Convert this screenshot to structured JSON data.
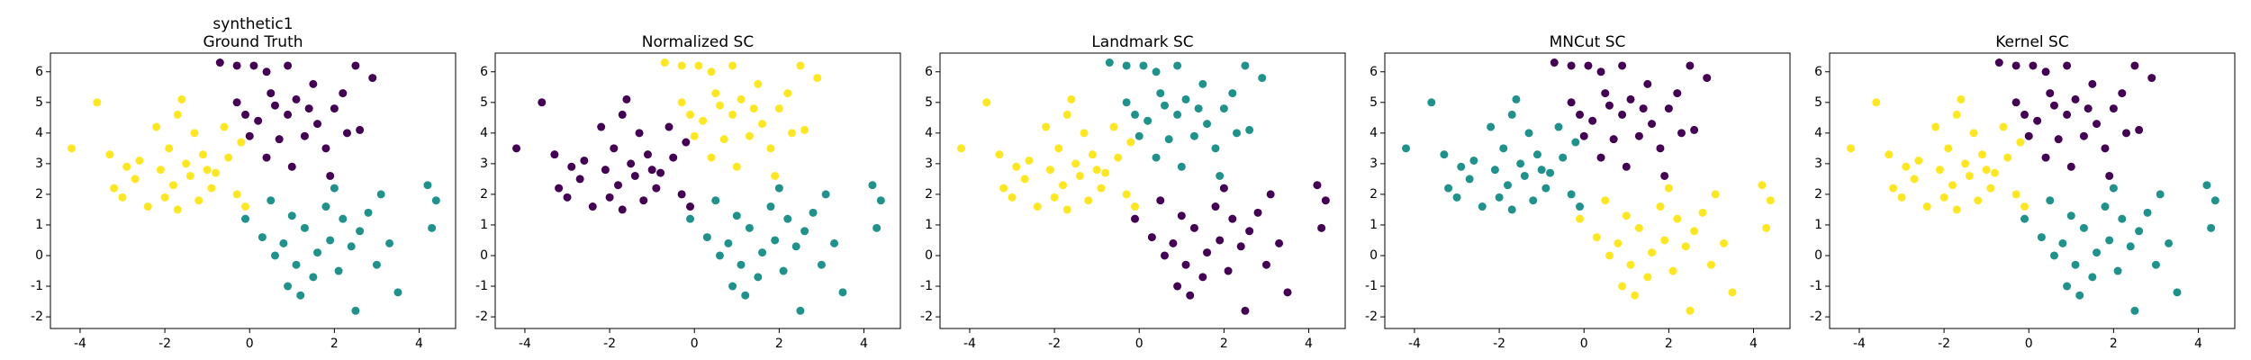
{
  "chart_data": [
    {
      "type": "scatter",
      "title": "synthetic1",
      "subtitle": "Ground Truth",
      "xlim": [
        -4.7,
        4.86
      ],
      "ylim": [
        -2.38,
        6.61
      ],
      "xticks": [
        -4,
        -2,
        0,
        2,
        4
      ],
      "yticks": [
        -2,
        -1,
        0,
        1,
        2,
        3,
        4,
        5,
        6
      ],
      "series": [
        {
          "color": "#fde725",
          "x": [
            -4.2,
            -3.6,
            -3.3,
            -3.2,
            -3.0,
            -2.7,
            -2.6,
            -2.4,
            -2.2,
            -2.1,
            -2.0,
            -1.9,
            -1.8,
            -1.7,
            -1.6,
            -1.5,
            -1.4,
            -1.3,
            -1.2,
            -1.1,
            -1.0,
            -0.8,
            -0.6,
            -0.5,
            -0.3,
            -0.2,
            -0.1,
            -1.7,
            -2.9,
            -0.9
          ],
          "y": [
            3.5,
            5.0,
            3.3,
            2.2,
            1.9,
            2.5,
            3.1,
            1.6,
            4.2,
            2.8,
            1.9,
            3.5,
            2.3,
            1.5,
            5.1,
            3.0,
            2.6,
            4.0,
            1.8,
            3.3,
            2.8,
            2.7,
            4.2,
            3.2,
            2.0,
            3.7,
            1.6,
            4.6,
            2.9,
            2.2
          ]
        },
        {
          "color": "#440154",
          "x": [
            -0.7,
            -0.3,
            0.1,
            0.4,
            0.9,
            1.5,
            2.2,
            2.5,
            2.9,
            -0.3,
            0.2,
            0.5,
            0.7,
            0.9,
            1.1,
            1.3,
            1.6,
            1.8,
            2.0,
            2.3,
            2.6,
            0.0,
            0.4,
            1.0,
            1.9,
            0.6,
            1.4,
            -0.1
          ],
          "y": [
            6.3,
            6.2,
            6.2,
            6.0,
            6.2,
            5.6,
            5.3,
            6.2,
            5.8,
            5.0,
            4.4,
            5.3,
            3.8,
            4.6,
            5.1,
            3.9,
            4.3,
            3.5,
            4.8,
            4.0,
            4.1,
            3.9,
            3.2,
            2.9,
            2.6,
            4.9,
            4.8,
            4.6
          ]
        },
        {
          "color": "#21918c",
          "x": [
            -0.1,
            0.3,
            0.5,
            0.8,
            1.0,
            1.1,
            1.3,
            1.5,
            1.6,
            1.8,
            1.9,
            2.1,
            2.2,
            2.4,
            2.5,
            2.6,
            2.8,
            3.0,
            3.1,
            3.3,
            3.5,
            4.2,
            4.4,
            4.3,
            0.9,
            1.2,
            2.0,
            0.6
          ],
          "y": [
            1.2,
            0.6,
            1.8,
            0.4,
            1.3,
            -0.3,
            0.9,
            -0.7,
            0.1,
            1.6,
            0.5,
            -0.5,
            1.2,
            0.3,
            -1.8,
            0.8,
            1.4,
            -0.3,
            2.0,
            0.4,
            -1.2,
            2.3,
            1.8,
            0.9,
            -1.0,
            -1.3,
            2.2,
            0.0
          ]
        }
      ]
    },
    {
      "type": "scatter",
      "title": "Normalized SC",
      "xlim": [
        -4.7,
        4.86
      ],
      "ylim": [
        -2.38,
        6.61
      ],
      "xticks": [
        -4,
        -2,
        0,
        2,
        4
      ],
      "yticks": [
        -2,
        -1,
        0,
        1,
        2,
        3,
        4,
        5,
        6
      ],
      "series": [
        {
          "color": "#440154",
          "x": [
            -4.2,
            -3.6,
            -3.3,
            -3.2,
            -3.0,
            -2.7,
            -2.6,
            -2.4,
            -2.2,
            -2.1,
            -2.0,
            -1.9,
            -1.8,
            -1.7,
            -1.6,
            -1.5,
            -1.4,
            -1.3,
            -1.2,
            -1.1,
            -1.0,
            -0.8,
            -0.6,
            -0.5,
            -0.3,
            -0.2,
            -0.1,
            -1.7,
            -2.9,
            -0.9
          ],
          "y": [
            3.5,
            5.0,
            3.3,
            2.2,
            1.9,
            2.5,
            3.1,
            1.6,
            4.2,
            2.8,
            1.9,
            3.5,
            2.3,
            1.5,
            5.1,
            3.0,
            2.6,
            4.0,
            1.8,
            3.3,
            2.8,
            2.7,
            4.2,
            3.2,
            2.0,
            3.7,
            1.6,
            4.6,
            2.9,
            2.2
          ]
        },
        {
          "color": "#fde725",
          "x": [
            -0.7,
            -0.3,
            0.1,
            0.4,
            0.9,
            1.5,
            2.2,
            2.5,
            2.9,
            -0.3,
            0.2,
            0.5,
            0.7,
            0.9,
            1.1,
            1.3,
            1.6,
            1.8,
            2.0,
            2.3,
            2.6,
            0.0,
            0.4,
            1.0,
            1.9,
            0.6,
            1.4,
            -0.1
          ],
          "y": [
            6.3,
            6.2,
            6.2,
            6.0,
            6.2,
            5.6,
            5.3,
            6.2,
            5.8,
            5.0,
            4.4,
            5.3,
            3.8,
            4.6,
            5.1,
            3.9,
            4.3,
            3.5,
            4.8,
            4.0,
            4.1,
            3.9,
            3.2,
            2.9,
            2.6,
            4.9,
            4.8,
            4.6
          ]
        },
        {
          "color": "#21918c",
          "x": [
            -0.1,
            0.3,
            0.5,
            0.8,
            1.0,
            1.1,
            1.3,
            1.5,
            1.6,
            1.8,
            1.9,
            2.1,
            2.2,
            2.4,
            2.5,
            2.6,
            2.8,
            3.0,
            3.1,
            3.3,
            3.5,
            4.2,
            4.4,
            4.3,
            0.9,
            1.2,
            2.0,
            0.6
          ],
          "y": [
            1.2,
            0.6,
            1.8,
            0.4,
            1.3,
            -0.3,
            0.9,
            -0.7,
            0.1,
            1.6,
            0.5,
            -0.5,
            1.2,
            0.3,
            -1.8,
            0.8,
            1.4,
            -0.3,
            2.0,
            0.4,
            -1.2,
            2.3,
            1.8,
            0.9,
            -1.0,
            -1.3,
            2.2,
            0.0
          ]
        }
      ]
    },
    {
      "type": "scatter",
      "title": "Landmark SC",
      "xlim": [
        -4.7,
        4.86
      ],
      "ylim": [
        -2.38,
        6.61
      ],
      "xticks": [
        -4,
        -2,
        0,
        2,
        4
      ],
      "yticks": [
        -2,
        -1,
        0,
        1,
        2,
        3,
        4,
        5,
        6
      ],
      "series": [
        {
          "color": "#fde725",
          "x": [
            -4.2,
            -3.6,
            -3.3,
            -3.2,
            -3.0,
            -2.7,
            -2.6,
            -2.4,
            -2.2,
            -2.1,
            -2.0,
            -1.9,
            -1.8,
            -1.7,
            -1.6,
            -1.5,
            -1.4,
            -1.3,
            -1.2,
            -1.1,
            -1.0,
            -0.8,
            -0.6,
            -0.5,
            -0.3,
            -0.2,
            -0.1,
            -1.7,
            -2.9,
            -0.9
          ],
          "y": [
            3.5,
            5.0,
            3.3,
            2.2,
            1.9,
            2.5,
            3.1,
            1.6,
            4.2,
            2.8,
            1.9,
            3.5,
            2.3,
            1.5,
            5.1,
            3.0,
            2.6,
            4.0,
            1.8,
            3.3,
            2.8,
            2.7,
            4.2,
            3.2,
            2.0,
            3.7,
            1.6,
            4.6,
            2.9,
            2.2
          ]
        },
        {
          "color": "#21918c",
          "x": [
            -0.7,
            -0.3,
            0.1,
            0.4,
            0.9,
            1.5,
            2.2,
            2.5,
            2.9,
            -0.3,
            0.2,
            0.5,
            0.7,
            0.9,
            1.1,
            1.3,
            1.6,
            1.8,
            2.0,
            2.3,
            2.6,
            0.0,
            0.4,
            1.0,
            1.9,
            0.6,
            1.4,
            -0.1
          ],
          "y": [
            6.3,
            6.2,
            6.2,
            6.0,
            6.2,
            5.6,
            5.3,
            6.2,
            5.8,
            5.0,
            4.4,
            5.3,
            3.8,
            4.6,
            5.1,
            3.9,
            4.3,
            3.5,
            4.8,
            4.0,
            4.1,
            3.9,
            3.2,
            2.9,
            2.6,
            4.9,
            4.8,
            4.6
          ]
        },
        {
          "color": "#440154",
          "x": [
            -0.1,
            0.3,
            0.5,
            0.8,
            1.0,
            1.1,
            1.3,
            1.5,
            1.6,
            1.8,
            1.9,
            2.1,
            2.2,
            2.4,
            2.5,
            2.6,
            2.8,
            3.0,
            3.1,
            3.3,
            3.5,
            4.2,
            4.4,
            4.3,
            0.9,
            1.2,
            2.0,
            0.6
          ],
          "y": [
            1.2,
            0.6,
            1.8,
            0.4,
            1.3,
            -0.3,
            0.9,
            -0.7,
            0.1,
            1.6,
            0.5,
            -0.5,
            1.2,
            0.3,
            -1.8,
            0.8,
            1.4,
            -0.3,
            2.0,
            0.4,
            -1.2,
            2.3,
            1.8,
            0.9,
            -1.0,
            -1.3,
            2.2,
            0.0
          ]
        }
      ]
    },
    {
      "type": "scatter",
      "title": "MNCut SC",
      "xlim": [
        -4.7,
        4.86
      ],
      "ylim": [
        -2.38,
        6.61
      ],
      "xticks": [
        -4,
        -2,
        0,
        2,
        4
      ],
      "yticks": [
        -2,
        -1,
        0,
        1,
        2,
        3,
        4,
        5,
        6
      ],
      "series": [
        {
          "color": "#21918c",
          "x": [
            -4.2,
            -3.6,
            -3.3,
            -3.2,
            -3.0,
            -2.7,
            -2.6,
            -2.4,
            -2.2,
            -2.1,
            -2.0,
            -1.9,
            -1.8,
            -1.7,
            -1.6,
            -1.5,
            -1.4,
            -1.3,
            -1.2,
            -1.1,
            -1.0,
            -0.8,
            -0.6,
            -0.5,
            -0.3,
            -0.2,
            -0.1,
            -1.7,
            -2.9,
            -0.9
          ],
          "y": [
            3.5,
            5.0,
            3.3,
            2.2,
            1.9,
            2.5,
            3.1,
            1.6,
            4.2,
            2.8,
            1.9,
            3.5,
            2.3,
            1.5,
            5.1,
            3.0,
            2.6,
            4.0,
            1.8,
            3.3,
            2.8,
            2.7,
            4.2,
            3.2,
            2.0,
            3.7,
            1.6,
            4.6,
            2.9,
            2.2
          ]
        },
        {
          "color": "#440154",
          "x": [
            -0.7,
            -0.3,
            0.1,
            0.4,
            0.9,
            1.5,
            2.2,
            2.5,
            2.9,
            -0.3,
            0.2,
            0.5,
            0.7,
            0.9,
            1.1,
            1.3,
            1.6,
            1.8,
            2.0,
            2.3,
            2.6,
            0.0,
            0.4,
            1.0,
            1.9,
            0.6,
            1.4,
            -0.1
          ],
          "y": [
            6.3,
            6.2,
            6.2,
            6.0,
            6.2,
            5.6,
            5.3,
            6.2,
            5.8,
            5.0,
            4.4,
            5.3,
            3.8,
            4.6,
            5.1,
            3.9,
            4.3,
            3.5,
            4.8,
            4.0,
            4.1,
            3.9,
            3.2,
            2.9,
            2.6,
            4.9,
            4.8,
            4.6
          ]
        },
        {
          "color": "#fde725",
          "x": [
            -0.1,
            0.3,
            0.5,
            0.8,
            1.0,
            1.1,
            1.3,
            1.5,
            1.6,
            1.8,
            1.9,
            2.1,
            2.2,
            2.4,
            2.5,
            2.6,
            2.8,
            3.0,
            3.1,
            3.3,
            3.5,
            4.2,
            4.4,
            4.3,
            0.9,
            1.2,
            2.0,
            0.6
          ],
          "y": [
            1.2,
            0.6,
            1.8,
            0.4,
            1.3,
            -0.3,
            0.9,
            -0.7,
            0.1,
            1.6,
            0.5,
            -0.5,
            1.2,
            0.3,
            -1.8,
            0.8,
            1.4,
            -0.3,
            2.0,
            0.4,
            -1.2,
            2.3,
            1.8,
            0.9,
            -1.0,
            -1.3,
            2.2,
            0.0
          ]
        }
      ]
    },
    {
      "type": "scatter",
      "title": "Kernel SC",
      "xlim": [
        -4.7,
        4.86
      ],
      "ylim": [
        -2.38,
        6.61
      ],
      "xticks": [
        -4,
        -2,
        0,
        2,
        4
      ],
      "yticks": [
        -2,
        -1,
        0,
        1,
        2,
        3,
        4,
        5,
        6
      ],
      "series": [
        {
          "color": "#fde725",
          "x": [
            -4.2,
            -3.6,
            -3.3,
            -3.2,
            -3.0,
            -2.7,
            -2.6,
            -2.4,
            -2.2,
            -2.1,
            -2.0,
            -1.9,
            -1.8,
            -1.7,
            -1.6,
            -1.5,
            -1.4,
            -1.3,
            -1.2,
            -1.1,
            -1.0,
            -0.8,
            -0.6,
            -0.5,
            -0.3,
            -0.2,
            -0.1,
            -1.7,
            -2.9,
            -0.9
          ],
          "y": [
            3.5,
            5.0,
            3.3,
            2.2,
            1.9,
            2.5,
            3.1,
            1.6,
            4.2,
            2.8,
            1.9,
            3.5,
            2.3,
            1.5,
            5.1,
            3.0,
            2.6,
            4.0,
            1.8,
            3.3,
            2.8,
            2.7,
            4.2,
            3.2,
            2.0,
            3.7,
            1.6,
            4.6,
            2.9,
            2.2
          ]
        },
        {
          "color": "#440154",
          "x": [
            -0.7,
            -0.3,
            0.1,
            0.4,
            0.9,
            1.5,
            2.2,
            2.5,
            2.9,
            -0.3,
            0.2,
            0.5,
            0.7,
            0.9,
            1.1,
            1.3,
            1.6,
            1.8,
            2.0,
            2.3,
            2.6,
            0.0,
            0.4,
            1.0,
            1.9,
            0.6,
            1.4,
            -0.1
          ],
          "y": [
            6.3,
            6.2,
            6.2,
            6.0,
            6.2,
            5.6,
            5.3,
            6.2,
            5.8,
            5.0,
            4.4,
            5.3,
            3.8,
            4.6,
            5.1,
            3.9,
            4.3,
            3.5,
            4.8,
            4.0,
            4.1,
            3.9,
            3.2,
            2.9,
            2.6,
            4.9,
            4.8,
            4.6
          ]
        },
        {
          "color": "#21918c",
          "x": [
            -0.1,
            0.3,
            0.5,
            0.8,
            1.0,
            1.1,
            1.3,
            1.5,
            1.6,
            1.8,
            1.9,
            2.1,
            2.2,
            2.4,
            2.5,
            2.6,
            2.8,
            3.0,
            3.1,
            3.3,
            3.5,
            4.2,
            4.4,
            4.3,
            0.9,
            1.2,
            2.0,
            0.6
          ],
          "y": [
            1.2,
            0.6,
            1.8,
            0.4,
            1.3,
            -0.3,
            0.9,
            -0.7,
            0.1,
            1.6,
            0.5,
            -0.5,
            1.2,
            0.3,
            -1.8,
            0.8,
            1.4,
            -0.3,
            2.0,
            0.4,
            -1.2,
            2.3,
            1.8,
            0.9,
            -1.0,
            -1.3,
            2.2,
            0.0
          ]
        }
      ]
    }
  ]
}
